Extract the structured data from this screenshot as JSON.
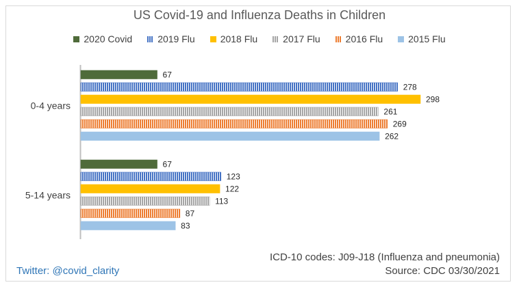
{
  "chart_data": {
    "type": "bar",
    "orientation": "horizontal",
    "title": "US Covid-19 and Influenza Deaths in Children",
    "categories": [
      "0-4 years",
      "5-14 years"
    ],
    "series": [
      {
        "name": "2020 Covid",
        "values": [
          67,
          67
        ],
        "color": "#4f6b3a",
        "pattern": "solid"
      },
      {
        "name": "2019 Flu",
        "values": [
          278,
          123
        ],
        "color": "#4472c4",
        "pattern": "vertical-lines"
      },
      {
        "name": "2018 Flu",
        "values": [
          298,
          122
        ],
        "color": "#ffc000",
        "pattern": "solid"
      },
      {
        "name": "2017 Flu",
        "values": [
          261,
          113
        ],
        "color": "#a5a5a5",
        "pattern": "vertical-lines"
      },
      {
        "name": "2016 Flu",
        "values": [
          269,
          87
        ],
        "color": "#ed7d31",
        "pattern": "vertical-lines"
      },
      {
        "name": "2015 Flu",
        "values": [
          262,
          83
        ],
        "color": "#9dc3e6",
        "pattern": "solid"
      }
    ],
    "xlim": [
      0,
      298
    ],
    "legend_position": "top",
    "grid": false,
    "data_labels": true
  },
  "annotations": {
    "codes": "ICD-10 codes: J09-J18 (Influenza and pneumonia)",
    "source": "Source: CDC  03/30/2021",
    "twitter": "Twitter: @covid_clarity"
  }
}
